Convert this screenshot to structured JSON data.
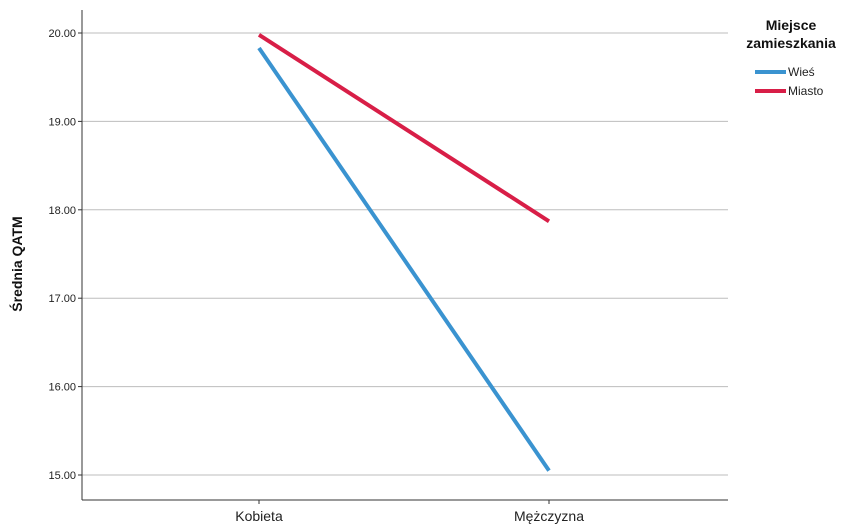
{
  "chart_data": {
    "type": "line",
    "title": "",
    "xlabel": "",
    "ylabel": "Średnia QATM",
    "categories": [
      "Kobieta",
      "Mężczyzna"
    ],
    "y_ticks": [
      "15.00",
      "16.00",
      "17.00",
      "18.00",
      "19.00",
      "20.00"
    ],
    "ylim": [
      14.8,
      20.25
    ],
    "grid": true,
    "legend": {
      "title": "Miejsce zamieszkania",
      "title_lines": [
        "Miejsce",
        "zamieszkania"
      ],
      "placement": "top-right"
    },
    "series": [
      {
        "name": "Wieś",
        "color": "#3a93d0",
        "values": [
          19.83,
          15.05
        ]
      },
      {
        "name": "Miasto",
        "color": "#d81e47",
        "values": [
          19.98,
          17.87
        ]
      }
    ]
  }
}
